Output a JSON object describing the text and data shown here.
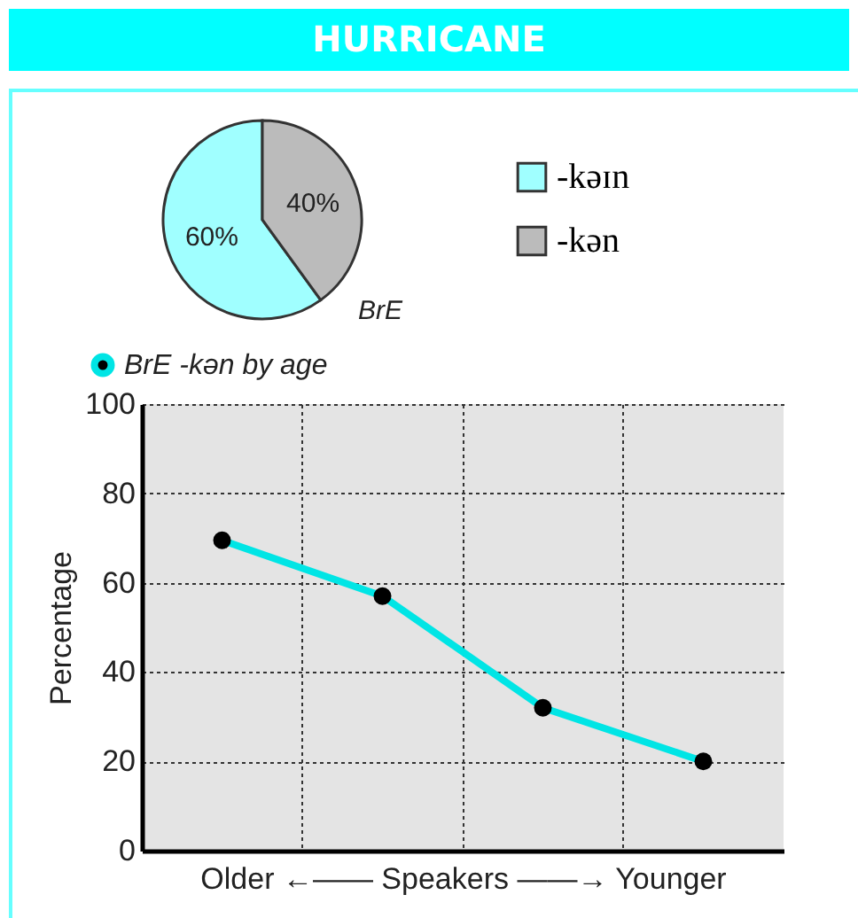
{
  "chart_data": [
    {
      "type": "pie",
      "title": "HURRICANE",
      "categories": [
        "-kəɪn",
        "-kən"
      ],
      "values": [
        60,
        40
      ],
      "colors": [
        "#a0ffff",
        "#bbbbbb"
      ],
      "value_labels": [
        "60%",
        "40%"
      ],
      "legend": "right",
      "annotations": [
        "BrE"
      ]
    },
    {
      "type": "line",
      "categories": [
        null,
        null,
        null,
        null
      ],
      "series": [
        {
          "name": "BrE -kən by age",
          "color": "#00e5e5",
          "values": [
            69.5,
            57,
            32,
            20
          ]
        }
      ],
      "ylim": [
        0,
        100
      ],
      "yticks": [
        0,
        20,
        40,
        60,
        80,
        100
      ],
      "ylabel": "Percentage",
      "xlabel": "Older ←—— Speakers ——→ Younger",
      "grid": true,
      "legend": "top left",
      "marker": "circle",
      "line_style": "solid"
    }
  ]
}
